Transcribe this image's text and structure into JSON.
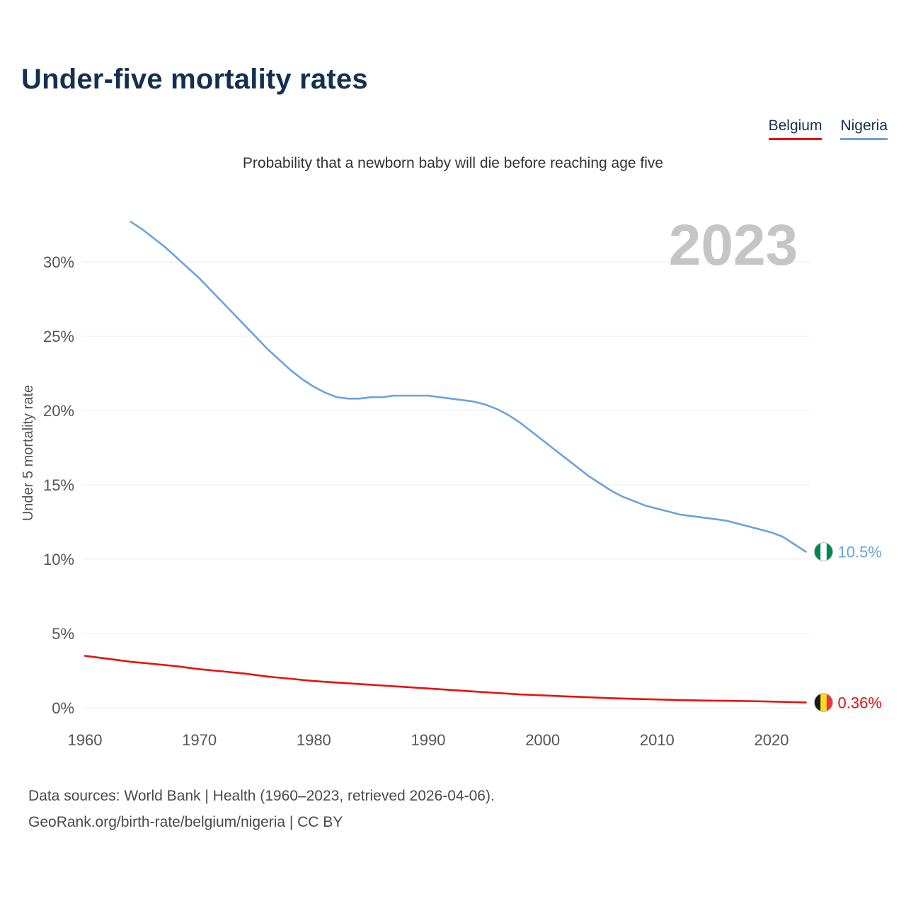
{
  "page": {
    "footer_line1": "Data sources: World Bank | Health (1960–2023, retrieved 2026-04-06).",
    "footer_line2": "GeoRank.org/birth-rate/belgium/nigeria | CC BY"
  },
  "chart_data": {
    "type": "line",
    "title": "Under-five mortality rates",
    "subtitle": "Probability that a newborn baby will die before reaching age five",
    "ylabel": "Under 5 mortality rate",
    "xlabel": "",
    "year_label": "2023",
    "unit": "%",
    "x_ticks": [
      1960,
      1970,
      1980,
      1990,
      2000,
      2010,
      2020
    ],
    "y_ticks": [
      "0%",
      "5%",
      "10%",
      "15%",
      "20%",
      "25%",
      "30%"
    ],
    "y_tick_values": [
      0,
      5,
      10,
      15,
      20,
      25,
      30
    ],
    "xlim": [
      1958,
      2026
    ],
    "ylim": [
      0,
      33
    ],
    "grid": true,
    "legend_position": "top-right",
    "series": [
      {
        "name": "Belgium",
        "color": "#e8100c",
        "flag": "belgium",
        "end_label": "0.36%",
        "end_value": 0.36,
        "points": [
          [
            1960,
            3.5
          ],
          [
            1962,
            3.3
          ],
          [
            1964,
            3.1
          ],
          [
            1966,
            2.95
          ],
          [
            1968,
            2.8
          ],
          [
            1970,
            2.6
          ],
          [
            1972,
            2.45
          ],
          [
            1974,
            2.3
          ],
          [
            1976,
            2.1
          ],
          [
            1978,
            1.95
          ],
          [
            1980,
            1.8
          ],
          [
            1982,
            1.7
          ],
          [
            1984,
            1.6
          ],
          [
            1986,
            1.5
          ],
          [
            1988,
            1.4
          ],
          [
            1990,
            1.3
          ],
          [
            1992,
            1.2
          ],
          [
            1994,
            1.1
          ],
          [
            1996,
            1.0
          ],
          [
            1998,
            0.9
          ],
          [
            2000,
            0.84
          ],
          [
            2002,
            0.77
          ],
          [
            2004,
            0.71
          ],
          [
            2006,
            0.65
          ],
          [
            2008,
            0.6
          ],
          [
            2010,
            0.56
          ],
          [
            2012,
            0.52
          ],
          [
            2014,
            0.49
          ],
          [
            2016,
            0.47
          ],
          [
            2018,
            0.45
          ],
          [
            2020,
            0.42
          ],
          [
            2022,
            0.38
          ],
          [
            2023,
            0.36
          ]
        ]
      },
      {
        "name": "Nigeria",
        "color": "#6aa3dc",
        "flag": "nigeria",
        "end_label": "10.5%",
        "end_value": 10.5,
        "points": [
          [
            1964,
            32.7
          ],
          [
            1965,
            32.2
          ],
          [
            1966,
            31.6
          ],
          [
            1967,
            31.0
          ],
          [
            1968,
            30.3
          ],
          [
            1969,
            29.6
          ],
          [
            1970,
            28.9
          ],
          [
            1971,
            28.1
          ],
          [
            1972,
            27.3
          ],
          [
            1973,
            26.5
          ],
          [
            1974,
            25.7
          ],
          [
            1975,
            24.9
          ],
          [
            1976,
            24.1
          ],
          [
            1977,
            23.4
          ],
          [
            1978,
            22.7
          ],
          [
            1979,
            22.1
          ],
          [
            1980,
            21.6
          ],
          [
            1981,
            21.2
          ],
          [
            1982,
            20.9
          ],
          [
            1983,
            20.8
          ],
          [
            1984,
            20.8
          ],
          [
            1985,
            20.9
          ],
          [
            1986,
            20.9
          ],
          [
            1987,
            21.0
          ],
          [
            1988,
            21.0
          ],
          [
            1989,
            21.0
          ],
          [
            1990,
            21.0
          ],
          [
            1991,
            20.9
          ],
          [
            1992,
            20.8
          ],
          [
            1993,
            20.7
          ],
          [
            1994,
            20.6
          ],
          [
            1995,
            20.4
          ],
          [
            1996,
            20.1
          ],
          [
            1997,
            19.7
          ],
          [
            1998,
            19.2
          ],
          [
            1999,
            18.6
          ],
          [
            2000,
            18.0
          ],
          [
            2001,
            17.4
          ],
          [
            2002,
            16.8
          ],
          [
            2003,
            16.2
          ],
          [
            2004,
            15.6
          ],
          [
            2005,
            15.1
          ],
          [
            2006,
            14.6
          ],
          [
            2007,
            14.2
          ],
          [
            2008,
            13.9
          ],
          [
            2009,
            13.6
          ],
          [
            2010,
            13.4
          ],
          [
            2011,
            13.2
          ],
          [
            2012,
            13.0
          ],
          [
            2013,
            12.9
          ],
          [
            2014,
            12.8
          ],
          [
            2015,
            12.7
          ],
          [
            2016,
            12.6
          ],
          [
            2017,
            12.4
          ],
          [
            2018,
            12.2
          ],
          [
            2019,
            12.0
          ],
          [
            2020,
            11.8
          ],
          [
            2021,
            11.5
          ],
          [
            2022,
            11.0
          ],
          [
            2023,
            10.5
          ]
        ]
      }
    ]
  }
}
